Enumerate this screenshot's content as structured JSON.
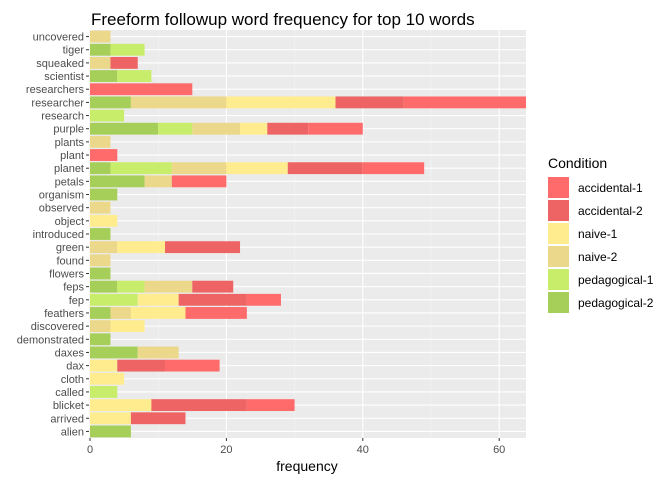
{
  "chart_data": {
    "type": "bar",
    "orientation": "horizontal",
    "stacked": true,
    "title": "Freeform followup word frequency for top 10 words",
    "xlabel": "frequency",
    "ylabel": "",
    "xlim": [
      0,
      64
    ],
    "x_ticks": [
      0,
      20,
      40,
      60
    ],
    "grid": true,
    "legend_title": "Condition",
    "legend_position": "right",
    "categories": [
      "alien",
      "arrived",
      "blicket",
      "called",
      "cloth",
      "dax",
      "daxes",
      "demonstrated",
      "discovered",
      "feathers",
      "fep",
      "feps",
      "flowers",
      "found",
      "green",
      "introduced",
      "object",
      "observed",
      "organism",
      "petals",
      "planet",
      "plant",
      "plants",
      "purple",
      "research",
      "researcher",
      "researchers",
      "scientist",
      "squeaked",
      "tiger",
      "uncovered"
    ],
    "series": [
      {
        "name": "pedagogical-2",
        "color": "#a6cf5a",
        "values": [
          6,
          0,
          0,
          0,
          0,
          0,
          7,
          3,
          0,
          3,
          0,
          4,
          3,
          0,
          0,
          3,
          0,
          0,
          4,
          8,
          3,
          0,
          0,
          10,
          0,
          6,
          0,
          4,
          0,
          3,
          0
        ]
      },
      {
        "name": "pedagogical-1",
        "color": "#c8ed6a",
        "values": [
          0,
          0,
          0,
          4,
          0,
          0,
          0,
          0,
          0,
          0,
          7,
          4,
          0,
          0,
          0,
          0,
          0,
          0,
          0,
          0,
          9,
          0,
          0,
          5,
          5,
          0,
          0,
          5,
          0,
          5,
          0
        ]
      },
      {
        "name": "naive-2",
        "color": "#ecd88a",
        "values": [
          0,
          0,
          0,
          0,
          0,
          0,
          6,
          0,
          3,
          3,
          0,
          7,
          0,
          3,
          4,
          0,
          0,
          3,
          0,
          4,
          8,
          0,
          3,
          7,
          0,
          14,
          0,
          0,
          3,
          0,
          3
        ]
      },
      {
        "name": "naive-1",
        "color": "#ffec8f",
        "values": [
          0,
          6,
          9,
          0,
          5,
          4,
          0,
          0,
          5,
          8,
          6,
          0,
          0,
          0,
          7,
          0,
          4,
          0,
          0,
          0,
          9,
          0,
          0,
          4,
          0,
          16,
          0,
          0,
          0,
          0,
          0
        ]
      },
      {
        "name": "accidental-2",
        "color": "#ee6464",
        "values": [
          0,
          8,
          14,
          0,
          0,
          7,
          0,
          0,
          0,
          0,
          10,
          6,
          0,
          0,
          11,
          0,
          0,
          0,
          0,
          0,
          11,
          0,
          0,
          6,
          0,
          10,
          0,
          0,
          4,
          0,
          0
        ]
      },
      {
        "name": "accidental-1",
        "color": "#ff6b6b",
        "values": [
          0,
          0,
          7,
          0,
          0,
          8,
          0,
          0,
          0,
          9,
          5,
          0,
          0,
          0,
          0,
          0,
          0,
          0,
          0,
          8,
          9,
          4,
          0,
          8,
          0,
          18,
          15,
          0,
          0,
          0,
          0
        ]
      }
    ]
  }
}
